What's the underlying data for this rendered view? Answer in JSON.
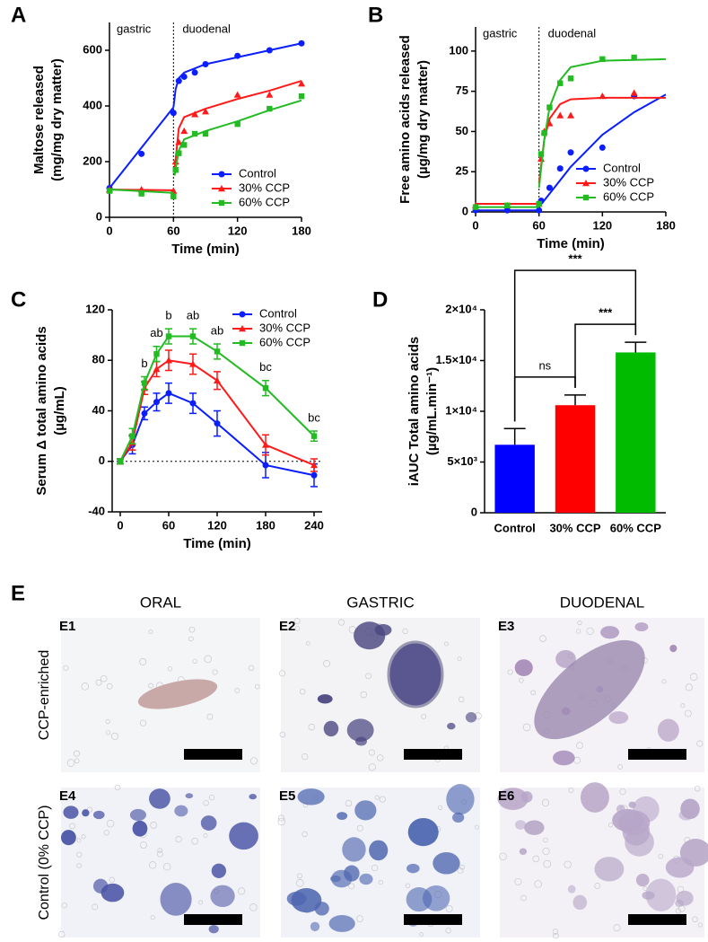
{
  "chart_data": [
    {
      "type": "scatter",
      "panel_label": "A",
      "xlabel": "Time (min)",
      "ylabel": [
        "Maltose released",
        "(mg/mg dry matter)"
      ],
      "xlim": [
        0,
        180
      ],
      "xticks": [
        0,
        60,
        120,
        180
      ],
      "ylim": [
        0,
        700
      ],
      "yticks": [
        0,
        200,
        400,
        600
      ],
      "divider_x": 60,
      "regions": [
        "gastric",
        "duodenal"
      ],
      "legend": "lower right",
      "series": [
        {
          "name": "Control",
          "color": "#0a1eff",
          "marker": "circle",
          "x": [
            0,
            30,
            60,
            65,
            70,
            80,
            90,
            120,
            150,
            180
          ],
          "values": [
            105,
            228,
            375,
            490,
            505,
            520,
            550,
            580,
            600,
            625
          ],
          "fit": [
            {
              "x": [
                0,
                60
              ],
              "values": [
                105,
                395
              ]
            },
            {
              "x": [
                60,
                62,
                65,
                70,
                90,
                120,
                150,
                180
              ],
              "values": [
                395,
                460,
                500,
                520,
                550,
                575,
                600,
                625
              ]
            }
          ]
        },
        {
          "name": "30% CCP",
          "color": "#ff1a1a",
          "marker": "triangle",
          "x": [
            0,
            30,
            60,
            62,
            65,
            70,
            80,
            90,
            120,
            150,
            180
          ],
          "values": [
            100,
            100,
            95,
            200,
            270,
            310,
            370,
            380,
            440,
            440,
            480
          ],
          "fit": [
            {
              "x": [
                0,
                60
              ],
              "values": [
                100,
                97
              ]
            },
            {
              "x": [
                61,
                65,
                70,
                90,
                120,
                150,
                180
              ],
              "values": [
                170,
                320,
                360,
                390,
                425,
                455,
                490
              ]
            }
          ]
        },
        {
          "name": "60% CCP",
          "color": "#22bb22",
          "marker": "square",
          "x": [
            0,
            30,
            60,
            62,
            65,
            70,
            80,
            90,
            120,
            150,
            180
          ],
          "values": [
            95,
            85,
            75,
            170,
            230,
            260,
            300,
            300,
            335,
            390,
            435
          ],
          "fit": [
            {
              "x": [
                0,
                60
              ],
              "values": [
                100,
                88
              ]
            },
            {
              "x": [
                61,
                65,
                70,
                90,
                120,
                150,
                180
              ],
              "values": [
                150,
                240,
                280,
                310,
                345,
                385,
                420
              ]
            }
          ]
        }
      ]
    },
    {
      "type": "scatter",
      "panel_label": "B",
      "xlabel": "Time (min)",
      "ylabel": [
        "Free amino acids released",
        "(µg/mg dry matter)"
      ],
      "xlim": [
        0,
        180
      ],
      "xticks": [
        0,
        60,
        120,
        180
      ],
      "ylim": [
        0,
        115
      ],
      "yticks": [
        0,
        25,
        50,
        75,
        100
      ],
      "divider_x": 60,
      "regions": [
        "gastric",
        "duodenal"
      ],
      "legend": "lower right",
      "series": [
        {
          "name": "Control",
          "color": "#0a1eff",
          "marker": "circle",
          "x": [
            0,
            30,
            60,
            62,
            70,
            80,
            90,
            120,
            150
          ],
          "values": [
            1,
            1,
            1,
            7,
            15,
            27,
            37,
            40,
            72
          ],
          "fit": [
            {
              "x": [
                0,
                60
              ],
              "values": [
                1,
                1
              ]
            },
            {
              "x": [
                60,
                90,
                120,
                150,
                180
              ],
              "values": [
                3,
                28,
                48,
                62,
                73
              ]
            }
          ]
        },
        {
          "name": "30% CCP",
          "color": "#ff1a1a",
          "marker": "triangle",
          "x": [
            0,
            30,
            60,
            62,
            65,
            70,
            80,
            90,
            120,
            150
          ],
          "values": [
            4,
            4,
            5,
            33,
            50,
            55,
            60,
            60,
            72,
            74
          ],
          "fit": [
            {
              "x": [
                0,
                60
              ],
              "values": [
                5,
                5
              ]
            },
            {
              "x": [
                60,
                65,
                70,
                80,
                90,
                120,
                180
              ],
              "values": [
                18,
                45,
                58,
                67,
                70,
                71,
                71
              ]
            }
          ]
        },
        {
          "name": "60%  CCP",
          "color": "#22bb22",
          "marker": "square",
          "x": [
            0,
            30,
            60,
            62,
            65,
            70,
            80,
            90,
            120,
            150
          ],
          "values": [
            3,
            4,
            5,
            36,
            49,
            65,
            80,
            83,
            95,
            96
          ],
          "fit": [
            {
              "x": [
                0,
                60
              ],
              "values": [
                3,
                3
              ]
            },
            {
              "x": [
                60,
                65,
                70,
                80,
                90,
                120,
                180
              ],
              "values": [
                15,
                45,
                65,
                82,
                90,
                94,
                95
              ]
            }
          ]
        }
      ]
    },
    {
      "type": "line",
      "panel_label": "C",
      "xlabel": "Time (min)",
      "ylabel": [
        "Serum Δ total amino acids",
        "(µg/mL)"
      ],
      "xlim": [
        -10,
        250
      ],
      "xticks": [
        0,
        60,
        120,
        180,
        240
      ],
      "ylim": [
        -40,
        120
      ],
      "yticks": [
        -40,
        0,
        40,
        80,
        120
      ],
      "refline_y": 0,
      "legend": "upper right",
      "x": [
        0,
        15,
        30,
        45,
        60,
        90,
        120,
        180,
        240
      ],
      "series": [
        {
          "name": "Control",
          "color": "#0a1eff",
          "marker": "circle",
          "values": [
            0,
            13,
            38,
            47,
            54,
            46,
            30,
            -3,
            -11
          ],
          "errors": [
            2,
            7,
            5,
            7,
            8,
            8,
            10,
            10,
            9
          ]
        },
        {
          "name": "30% CCP",
          "color": "#ff1a1a",
          "marker": "triangle",
          "values": [
            0,
            15,
            58,
            73,
            80,
            77,
            64,
            13,
            -3
          ],
          "errors": [
            2,
            6,
            5,
            6,
            8,
            8,
            7,
            8,
            5
          ]
        },
        {
          "name": "60% CCP",
          "color": "#22bb22",
          "marker": "square",
          "values": [
            0,
            20,
            62,
            85,
            99,
            99,
            87,
            58,
            20
          ],
          "errors": [
            2,
            6,
            5,
            6,
            6,
            6,
            6,
            6,
            4
          ]
        }
      ],
      "annotations": [
        {
          "x": 30,
          "text": "b"
        },
        {
          "x": 45,
          "text": "ab"
        },
        {
          "x": 60,
          "text": "b"
        },
        {
          "x": 90,
          "text": "ab"
        },
        {
          "x": 120,
          "text": "ab"
        },
        {
          "x": 180,
          "text": "bc"
        },
        {
          "x": 240,
          "text": "bc"
        }
      ]
    },
    {
      "type": "bar",
      "panel_label": "D",
      "ylabel": [
        "iAUC Total amino acids",
        "(µg/mL.min⁻¹)"
      ],
      "categories": [
        "Control",
        "30% CCP",
        "60% CCP"
      ],
      "values": [
        6700,
        10600,
        15800
      ],
      "errors": [
        1600,
        1000,
        1000
      ],
      "colors": [
        "#0000ff",
        "#ff0000",
        "#00bb00"
      ],
      "ylim": [
        0,
        20000
      ],
      "yticks": [
        0,
        {
          "value": 5000,
          "label": "5×10³"
        },
        {
          "value": 10000,
          "label": "1×10⁴"
        },
        {
          "value": 15000,
          "label": "1.5×10⁴"
        },
        {
          "value": 20000,
          "label": "2×10⁴"
        }
      ],
      "comparisons": [
        {
          "from": 0,
          "to": 1,
          "label": "ns"
        },
        {
          "from": 1,
          "to": 2,
          "label": "***"
        },
        {
          "from": 0,
          "to": 2,
          "label": "***"
        }
      ]
    }
  ],
  "figure_e": {
    "label": "E",
    "columns": [
      "ORAL",
      "GASTRIC",
      "DUODENAL"
    ],
    "rows": [
      "CCP-enriched",
      "Control (0% CCP)"
    ],
    "panels": [
      "E1",
      "E2",
      "E3",
      "E4",
      "E5",
      "E6"
    ]
  }
}
